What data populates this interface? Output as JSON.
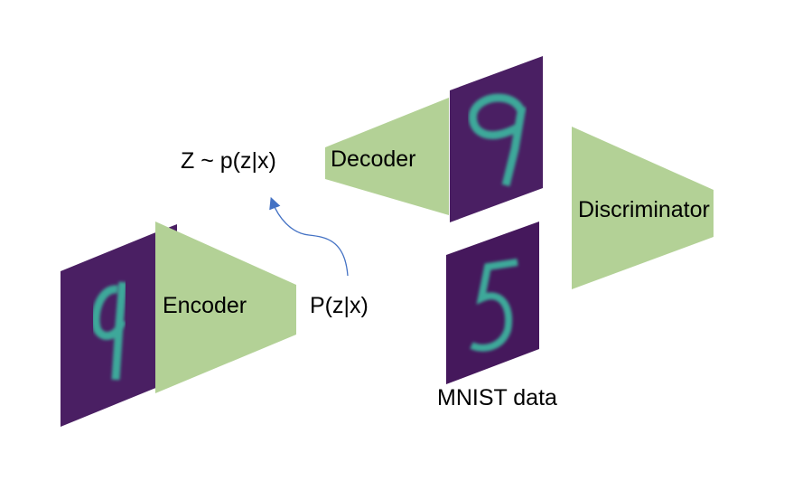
{
  "labels": {
    "latent": "Z ~ p(z|x)",
    "decoder": "Decoder",
    "discriminator": "Discriminator",
    "encoder": "Encoder",
    "posterior": "P(z|x)",
    "mnist": "MNIST data"
  },
  "digits": {
    "input": "9",
    "reconstruction": "9",
    "real_sample": "5"
  },
  "colors": {
    "block": "#b3d196",
    "image_bg": "#4a1f63",
    "digit": "#3ea89a",
    "arrow": "#4472c4"
  }
}
